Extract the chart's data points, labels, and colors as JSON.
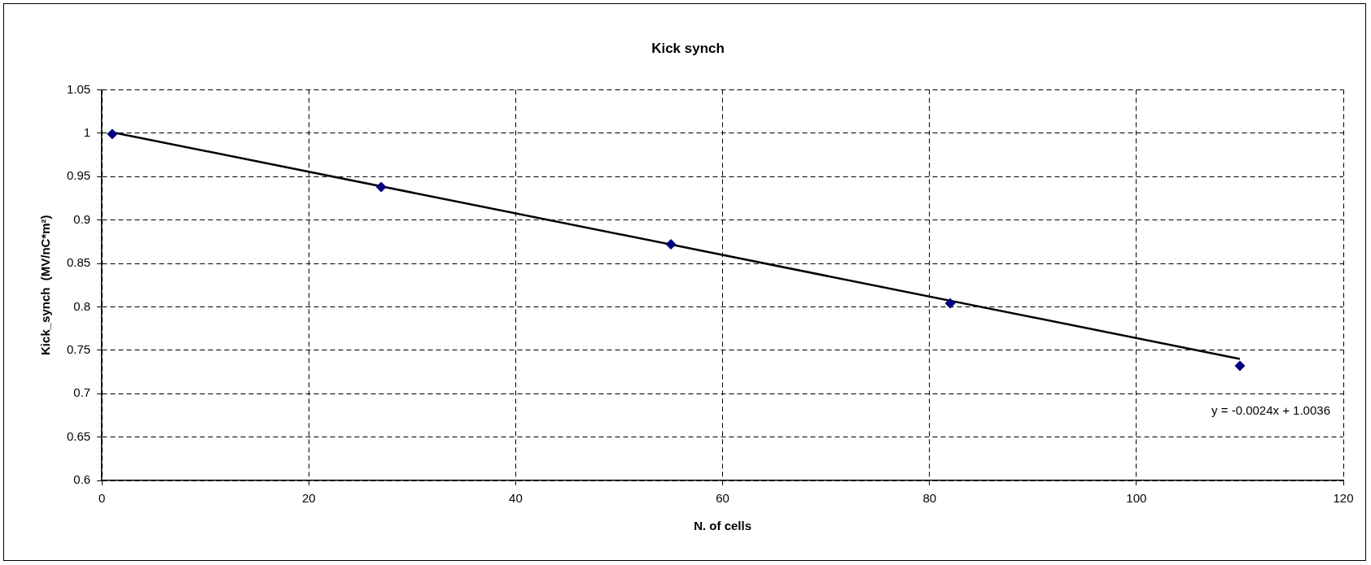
{
  "chart_data": {
    "type": "scatter",
    "title": "Kick synch",
    "xlabel": "N. of cells",
    "ylabel": "Kick_synch  (MV/nC*m²)",
    "x": [
      1,
      27,
      55,
      82,
      110
    ],
    "series": [
      {
        "color": "#000080",
        "values": [
          0.999,
          0.938,
          0.872,
          0.804,
          0.732
        ],
        "marker": "diamond"
      },
      {
        "type": "line",
        "color": "#000000",
        "x": [
          1,
          110
        ],
        "values": [
          1.001,
          0.74
        ],
        "marker": "none",
        "line_style": "solid"
      }
    ],
    "xlim": [
      0,
      120
    ],
    "xticks": [
      0,
      20,
      40,
      60,
      80,
      100,
      120
    ],
    "ylim": [
      0.6,
      1.05
    ],
    "yticks": [
      0.6,
      0.65,
      0.7,
      0.75,
      0.8,
      0.85,
      0.9,
      0.95,
      1,
      1.05
    ],
    "grid": true,
    "legend": false,
    "annotations": [
      "y = -0.0024x + 1.0036"
    ]
  }
}
